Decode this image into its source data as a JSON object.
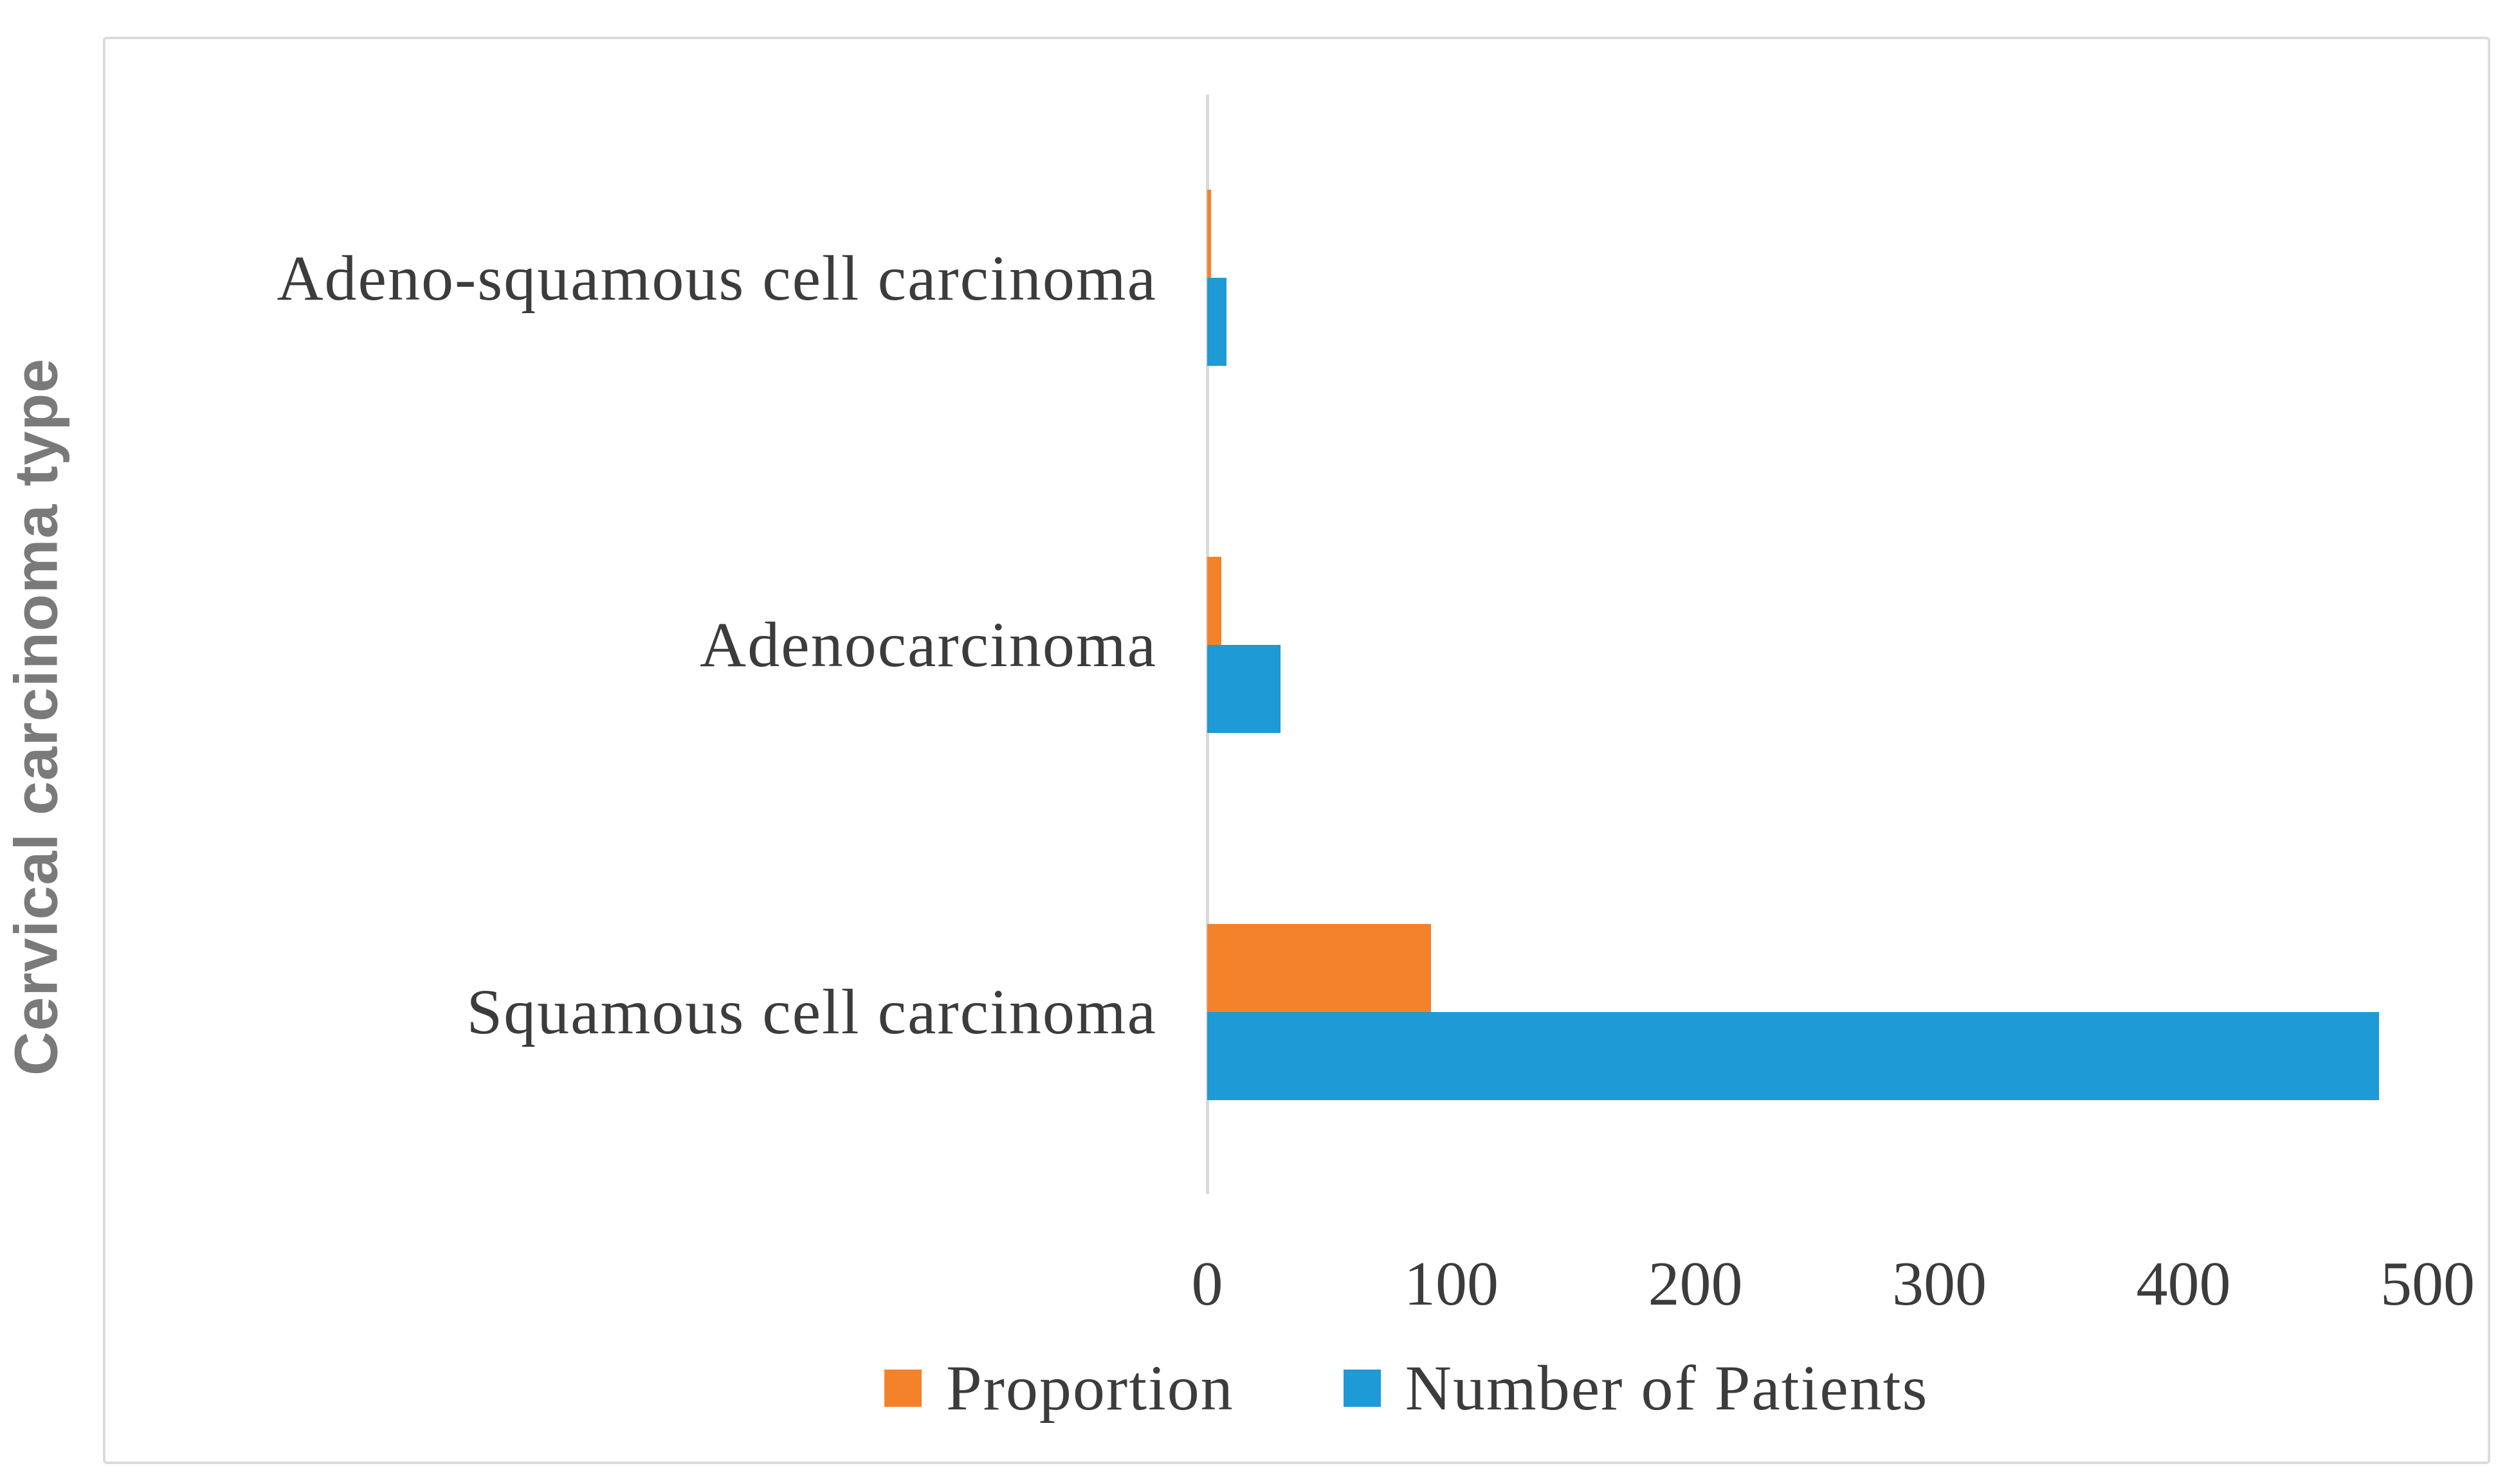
{
  "chart_data": {
    "type": "bar",
    "orientation": "horizontal",
    "title": "",
    "xlabel": "",
    "ylabel": "Cervical carcinoma type",
    "categories": [
      "Adeno-squamous cell carcinoma",
      "Adenocarcinoma",
      "Squamous cell carcinoma"
    ],
    "series": [
      {
        "name": "Proportion",
        "color": "#f4822a",
        "values": [
          1.5,
          5.7,
          91.8
        ]
      },
      {
        "name": "Number of Patients",
        "color": "#1e9ad6",
        "values": [
          8,
          30,
          480
        ]
      }
    ],
    "xlim": [
      0,
      500
    ],
    "x_ticks": [
      0,
      100,
      200,
      300,
      400,
      500
    ],
    "grid": false,
    "legend_position": "bottom",
    "colors": {
      "frame_border": "#dcdcdc",
      "axis_line": "#d9d9d9",
      "text": "#3c3c3c",
      "axis_title_text": "#7a7a7a"
    }
  }
}
